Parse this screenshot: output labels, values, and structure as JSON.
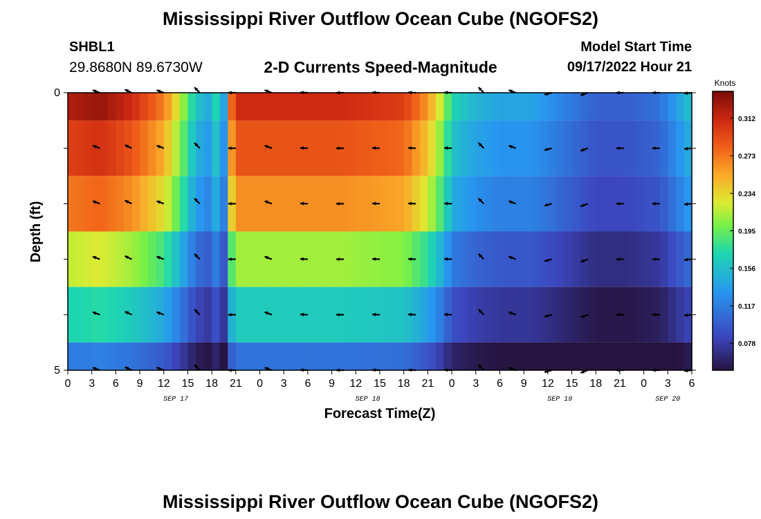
{
  "page": {
    "title": "Mississippi River Outflow Ocean Cube (NGOFS2)",
    "station": "SHBL1",
    "coords": "29.8680N  89.6730W",
    "subtitle": "2-D Currents Speed-Magnitude",
    "model_start_label": "Model Start Time",
    "model_start_value": "09/17/2022 Hour 21",
    "footer_title": "Mississippi River Outflow Ocean Cube (NGOFS2)"
  },
  "chart_data": {
    "type": "heatmap",
    "xlabel": "Forecast Time(Z)",
    "ylabel": "Depth (ft)",
    "colorbar_label": "Knots",
    "x_tick_labels": [
      "0",
      "3",
      "6",
      "9",
      "12",
      "15",
      "18",
      "21",
      "0",
      "3",
      "6",
      "9",
      "12",
      "15",
      "18",
      "21",
      "0",
      "3",
      "6",
      "9",
      "12",
      "15",
      "18",
      "21",
      "0",
      "3",
      "6"
    ],
    "date_labels": [
      {
        "label": "SEP 17",
        "hour": 13.5
      },
      {
        "label": "SEP 18",
        "hour": 37.5
      },
      {
        "label": "SEP 19",
        "hour": 61.5
      },
      {
        "label": "SEP 20",
        "hour": 75
      }
    ],
    "y_tick_labels": [
      {
        "depth": 0,
        "label": "0"
      },
      {
        "depth": 1,
        "label": ""
      },
      {
        "depth": 2,
        "label": ""
      },
      {
        "depth": 3,
        "label": ""
      },
      {
        "depth": 4,
        "label": ""
      },
      {
        "depth": 5,
        "label": "5"
      }
    ],
    "colorbar_ticks": [
      0.312,
      0.273,
      0.234,
      0.195,
      0.156,
      0.117,
      0.078
    ],
    "color_range": [
      0.05,
      0.34
    ],
    "time_range_hours": [
      0,
      78
    ],
    "depth_range_ft": [
      0,
      5
    ],
    "rows": [
      {
        "depth_top": 0.0,
        "depth_bottom": 0.5,
        "arrow_depth": 0.0
      },
      {
        "depth_top": 0.5,
        "depth_bottom": 1.5,
        "arrow_depth": 1.0
      },
      {
        "depth_top": 1.5,
        "depth_bottom": 2.5,
        "arrow_depth": 2.0
      },
      {
        "depth_top": 2.5,
        "depth_bottom": 3.5,
        "arrow_depth": 3.0
      },
      {
        "depth_top": 3.5,
        "depth_bottom": 4.5,
        "arrow_depth": 4.0
      },
      {
        "depth_top": 4.5,
        "depth_bottom": 5.0,
        "arrow_depth": 5.0
      }
    ],
    "speed_profile": {
      "hours": [
        0,
        4,
        8,
        12,
        14,
        16,
        18,
        19,
        19.5,
        20,
        21,
        26,
        34,
        42,
        45,
        47,
        48,
        51,
        54,
        58,
        62,
        66,
        70,
        74,
        78
      ],
      "surface_speed": [
        0.32,
        0.33,
        0.31,
        0.27,
        0.22,
        0.16,
        0.14,
        0.2,
        0.14,
        0.25,
        0.31,
        0.31,
        0.31,
        0.3,
        0.26,
        0.21,
        0.17,
        0.15,
        0.14,
        0.14,
        0.12,
        0.1,
        0.1,
        0.11,
        0.16
      ]
    },
    "row_factors": [
      1.0,
      0.93,
      0.85,
      0.68,
      0.53,
      0.36
    ],
    "vector_times_hours": [
      4,
      8,
      12,
      16.5,
      21,
      25.5,
      30,
      34.5,
      39,
      43.5,
      48,
      52,
      56,
      60.5,
      65,
      69.5,
      74,
      78
    ],
    "vector_directions_deg": [
      160,
      155,
      160,
      135,
      180,
      160,
      178,
      180,
      178,
      178,
      178,
      135,
      160,
      195,
      200,
      180,
      180,
      185
    ]
  }
}
